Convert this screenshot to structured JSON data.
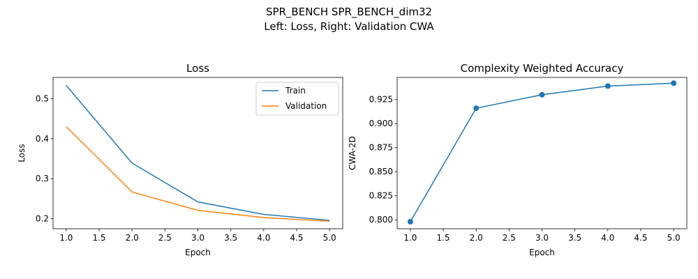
{
  "figure": {
    "suptitle_line1": "SPR_BENCH SPR_BENCH_dim32",
    "suptitle_line2": "Left: Loss, Right: Validation CWA"
  },
  "chart_data": [
    {
      "type": "line",
      "title": "Loss",
      "xlabel": "Epoch",
      "ylabel": "Loss",
      "x": [
        1,
        2,
        3,
        4,
        5
      ],
      "xlim": [
        0.8,
        5.2
      ],
      "ylim": [
        0.175,
        0.553
      ],
      "xticks": [
        "1.0",
        "1.5",
        "2.0",
        "2.5",
        "3.0",
        "3.5",
        "4.0",
        "4.5",
        "5.0"
      ],
      "yticks": [
        "0.2",
        "0.3",
        "0.4",
        "0.5"
      ],
      "grid": false,
      "legend_position": "upper-right",
      "series": [
        {
          "name": "Train",
          "color": "#1f77b4",
          "values": [
            0.533,
            0.339,
            0.242,
            0.211,
            0.196
          ]
        },
        {
          "name": "Validation",
          "color": "#ff7f0e",
          "values": [
            0.43,
            0.267,
            0.221,
            0.203,
            0.194
          ]
        }
      ]
    },
    {
      "type": "line",
      "title": "Complexity Weighted Accuracy",
      "xlabel": "Epoch",
      "ylabel": "CWA-2D",
      "x": [
        1,
        2,
        3,
        4,
        5
      ],
      "xlim": [
        0.8,
        5.2
      ],
      "ylim": [
        0.7907,
        0.948
      ],
      "xticks": [
        "1.0",
        "1.5",
        "2.0",
        "2.5",
        "3.0",
        "3.5",
        "4.0",
        "4.5",
        "5.0"
      ],
      "yticks": [
        "0.800",
        "0.825",
        "0.850",
        "0.875",
        "0.900",
        "0.925"
      ],
      "grid": false,
      "markers": true,
      "series": [
        {
          "name": "",
          "color": "#1f77b4",
          "values": [
            0.798,
            0.916,
            0.93,
            0.939,
            0.942
          ]
        }
      ]
    }
  ]
}
